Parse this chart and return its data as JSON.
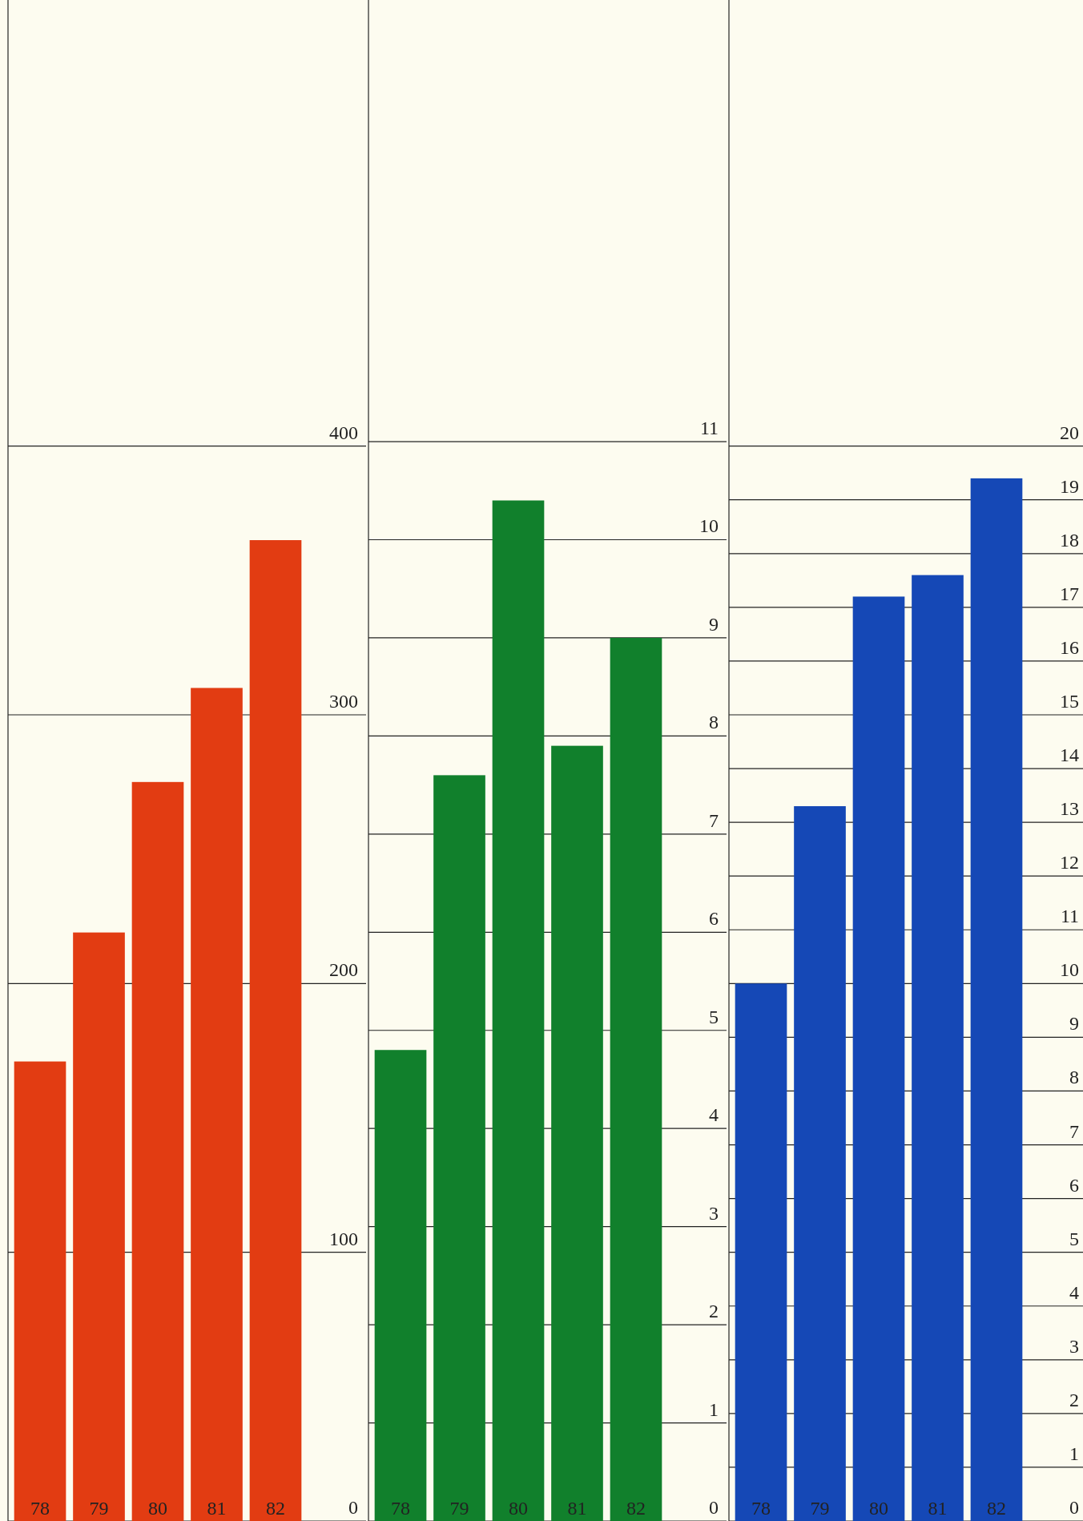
{
  "chart_data": [
    {
      "type": "bar",
      "categories": [
        "78",
        "79",
        "80",
        "81",
        "82"
      ],
      "values": [
        171,
        219,
        275,
        310,
        365
      ],
      "color": "#e23c12",
      "ylim": [
        0,
        566
      ],
      "yticks": [
        0,
        100,
        200,
        300,
        400
      ],
      "grid": "y"
    },
    {
      "type": "bar",
      "categories": [
        "78",
        "79",
        "80",
        "81",
        "82"
      ],
      "values": [
        4.8,
        7.6,
        10.4,
        7.9,
        9.0
      ],
      "color": "#11802c",
      "ylim": [
        0,
        15.5
      ],
      "yticks": [
        0,
        1,
        2,
        3,
        4,
        5,
        6,
        7,
        8,
        9,
        10,
        11
      ],
      "grid": "y"
    },
    {
      "type": "bar",
      "categories": [
        "78",
        "79",
        "80",
        "81",
        "82"
      ],
      "values": [
        10.0,
        13.3,
        17.2,
        17.6,
        19.4
      ],
      "color": "#1548b6",
      "ylim": [
        0,
        28.3
      ],
      "yticks": [
        0,
        1,
        2,
        3,
        4,
        5,
        6,
        7,
        8,
        9,
        10,
        11,
        12,
        13,
        14,
        15,
        16,
        17,
        18,
        19,
        20
      ],
      "grid": "y"
    }
  ]
}
